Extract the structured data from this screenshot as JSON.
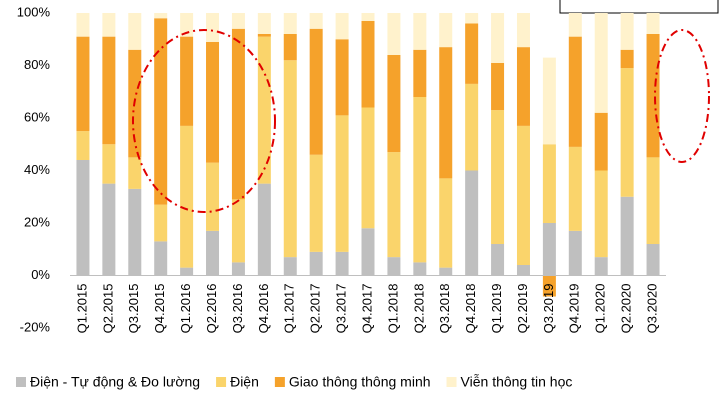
{
  "chart_data": {
    "type": "stacked_bar",
    "categories": [
      "Q1.2015",
      "Q2.2015",
      "Q3.2015",
      "Q4.2015",
      "Q1.2016",
      "Q2.2016",
      "Q3.2016",
      "Q4.2016",
      "Q1.2017",
      "Q2.2017",
      "Q3.2017",
      "Q4.2017",
      "Q1.2018",
      "Q2.2018",
      "Q3.2018",
      "Q4.2018",
      "Q1.2019",
      "Q2.2019",
      "Q3.2019",
      "Q4.2019",
      "Q1.2020",
      "Q2.2020",
      "Q3.2020"
    ],
    "series": [
      {
        "name": "Điện - Tự động & Đo lường",
        "color": "#bfbfbf",
        "values": [
          44,
          35,
          33,
          13,
          3,
          17,
          5,
          35,
          7,
          9,
          9,
          18,
          7,
          5,
          3,
          40,
          12,
          4,
          20,
          17,
          7,
          30,
          12
        ]
      },
      {
        "name": "Điện",
        "color": "#fad46b",
        "values": [
          11,
          15,
          12,
          14,
          54,
          26,
          24,
          56,
          75,
          37,
          52,
          46,
          40,
          63,
          34,
          33,
          51,
          53,
          30,
          32,
          33,
          49,
          33
        ]
      },
      {
        "name": "Giao thông thông minh",
        "color": "#f5a22b",
        "values": [
          36,
          41,
          41,
          71,
          34,
          46,
          65,
          1,
          10,
          48,
          29,
          33,
          37,
          18,
          50,
          23,
          18,
          30,
          -8,
          42,
          22,
          7,
          47
        ]
      },
      {
        "name": "Viễn thông tin học",
        "color": "#fff2cc",
        "values": [
          9,
          9,
          14,
          2,
          9,
          11,
          6,
          8,
          8,
          6,
          10,
          3,
          16,
          14,
          13,
          4,
          19,
          13,
          33,
          9,
          38,
          14,
          8
        ]
      }
    ],
    "ylim": [
      -20,
      100
    ],
    "yticks": [
      {
        "value": -20,
        "label": "-20%"
      },
      {
        "value": 0,
        "label": "0%"
      },
      {
        "value": 20,
        "label": "20%"
      },
      {
        "value": 40,
        "label": "40%"
      },
      {
        "value": 60,
        "label": "60%"
      },
      {
        "value": 80,
        "label": "80%"
      },
      {
        "value": 100,
        "label": "100%"
      }
    ],
    "grid": false
  }
}
